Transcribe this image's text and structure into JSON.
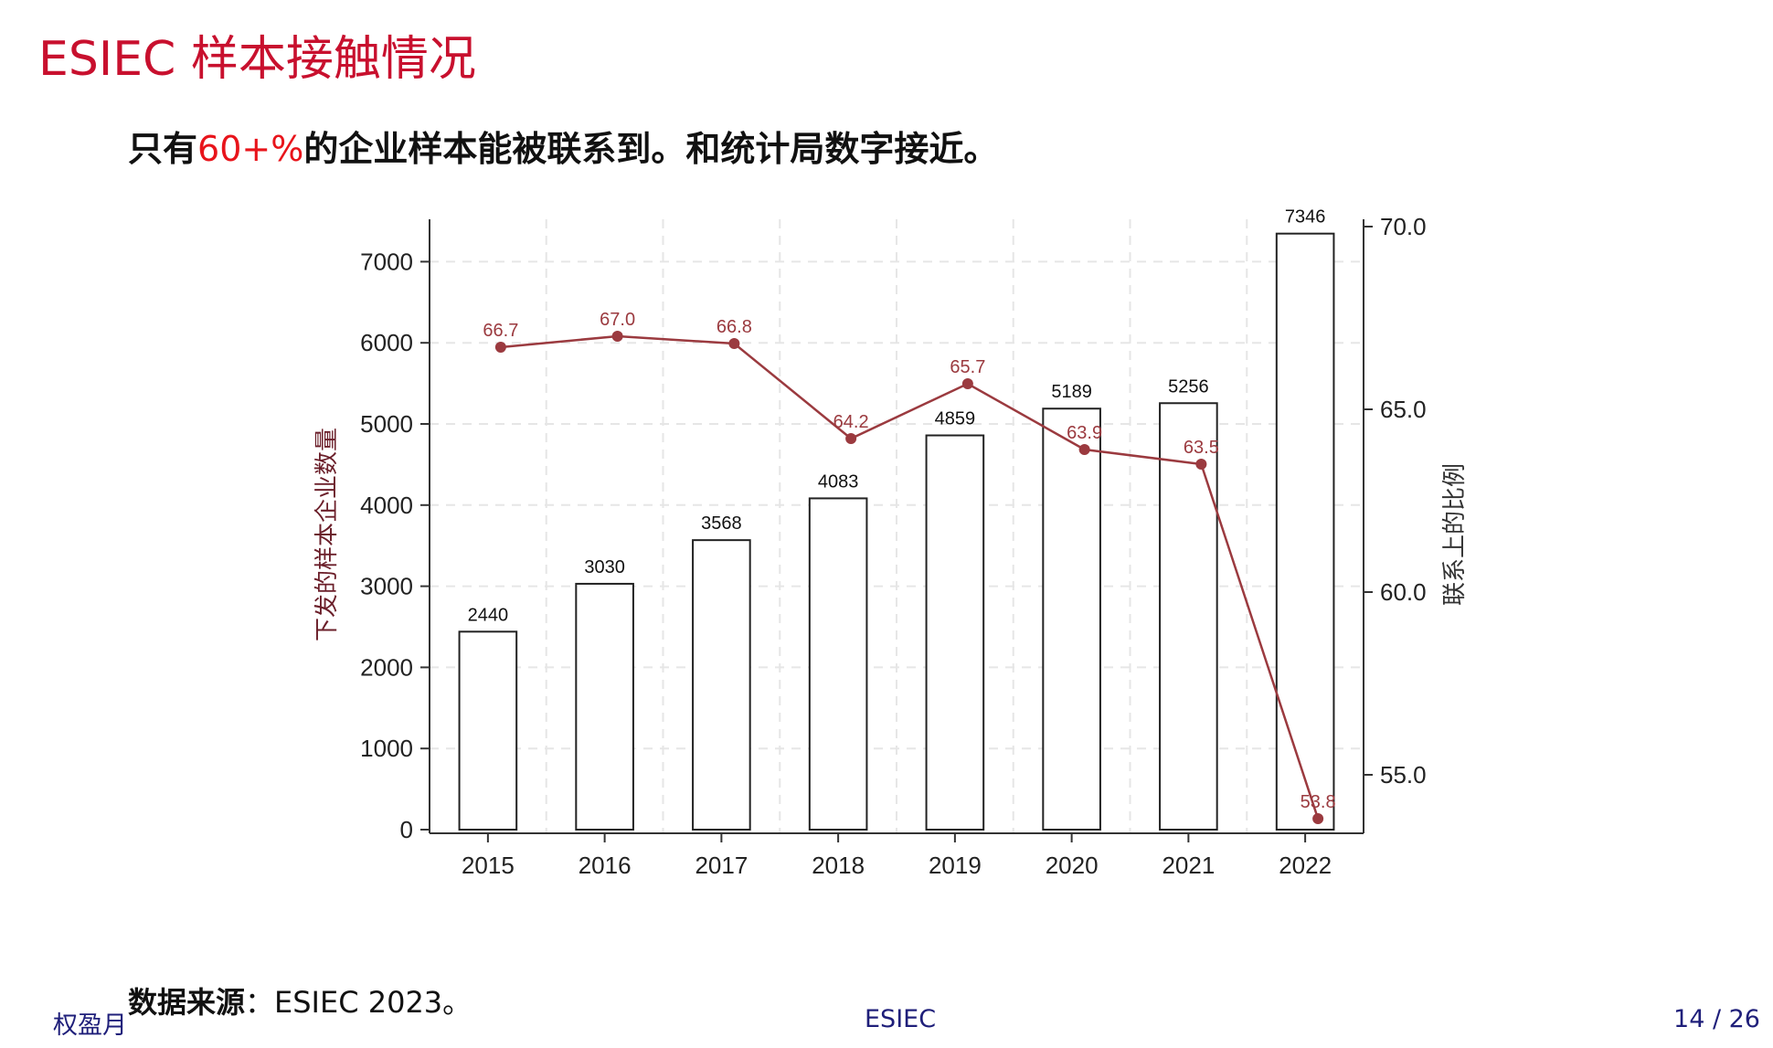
{
  "slide": {
    "title": "ESIEC 样本接触情况",
    "subtitle_prefix": "只有",
    "subtitle_highlight": "60+%",
    "subtitle_suffix": "的企业样本能被联系到。和统计局数字接近。",
    "source_label": "数据来源",
    "source_text": "：ESIEC 2023。"
  },
  "footer": {
    "author": "权盈月",
    "center": "ESIEC",
    "page": "14 / 26"
  },
  "colors": {
    "title": "#c8102e",
    "highlight": "#e8141b",
    "line": "#9b3a3f",
    "footer": "#1f1f7a"
  },
  "chart_data": {
    "type": "bar",
    "categories": [
      "2015",
      "2016",
      "2017",
      "2018",
      "2019",
      "2020",
      "2021",
      "2022"
    ],
    "ylabel_left": "下发的样本企业数量",
    "ylabel_right": "联系上的比例",
    "ylim_left": [
      0,
      7500
    ],
    "yticks_left": [
      0,
      1000,
      2000,
      3000,
      4000,
      5000,
      6000,
      7000
    ],
    "ylim_right": [
      53.5,
      70.5
    ],
    "yticks_right": [
      55.0,
      60.0,
      65.0,
      70.0
    ],
    "grid": true,
    "series": [
      {
        "type": "bar",
        "axis": "left",
        "values": [
          2440,
          3030,
          3568,
          4083,
          4859,
          5189,
          5256,
          7346
        ],
        "labels": [
          "2440",
          "3030",
          "3568",
          "4083",
          "4859",
          "5189",
          "5256",
          "7346"
        ]
      },
      {
        "type": "line",
        "axis": "right",
        "values": [
          66.7,
          67.0,
          66.8,
          64.2,
          65.7,
          63.9,
          63.5,
          53.8
        ],
        "labels": [
          "66.7",
          "67.0",
          "66.8",
          "64.2",
          "65.7",
          "63.9",
          "63.5",
          "53.8"
        ]
      }
    ]
  }
}
